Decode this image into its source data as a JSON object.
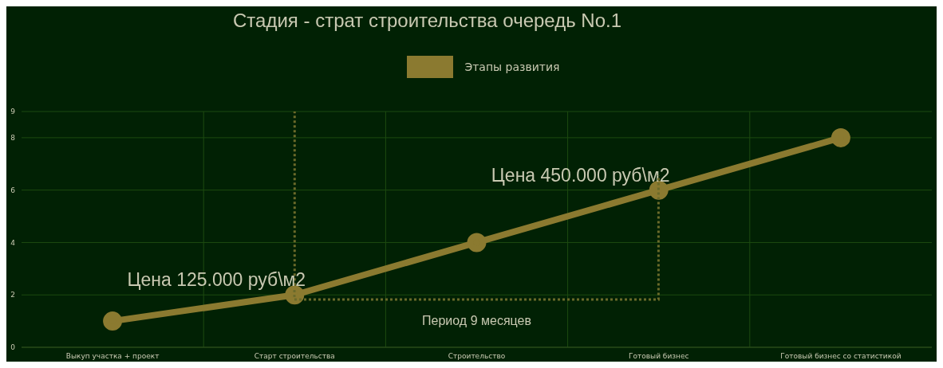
{
  "chart_data": {
    "type": "line",
    "title": "Стадия - страт строительства очередь No.1",
    "categories": [
      "Выкуп участка + проект",
      "Старт строительства",
      "Строительство",
      "Готовый бизнес",
      "Готовый бизнес со статистикой"
    ],
    "series": [
      {
        "name": "Этапы развития",
        "color": "#8b7a30",
        "values": [
          1,
          2,
          4,
          6,
          8
        ]
      }
    ],
    "ylim": [
      0,
      9
    ],
    "yticks": [
      0,
      2,
      4,
      6,
      8,
      9
    ],
    "grid": true,
    "legend": "top",
    "marker": "circle",
    "line_style": "solid",
    "ref_lines": [
      {
        "axis": "x",
        "value": "Старт строительства",
        "color": "#6b6a2a",
        "line_style": "dotted"
      }
    ],
    "annotations": [
      {
        "text": "Цена 125.000 руб\\м2",
        "x": "Старт строительства",
        "y": 2
      },
      {
        "text": "Цена 450.000 руб\\м2",
        "x": "Готовый бизнес",
        "y": 6
      },
      "Период 9 месяцев"
    ]
  }
}
